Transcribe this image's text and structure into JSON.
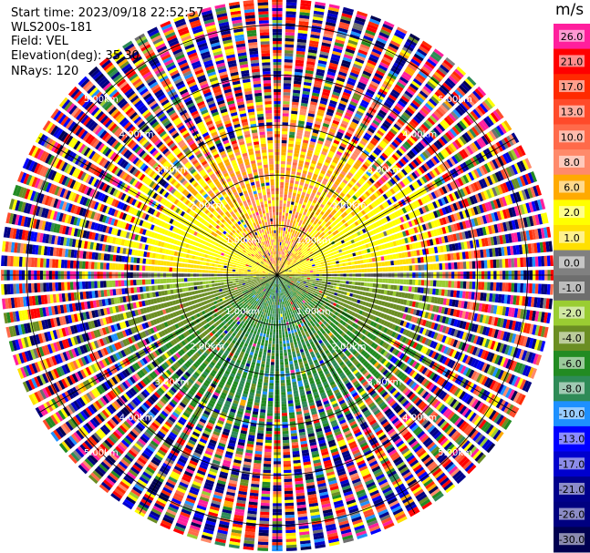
{
  "header": {
    "start_time": "Start time: 2023/09/18 22:52:57",
    "instrument": "WLS200s-181",
    "field": "Field: VEL",
    "elevation": "Elevation(deg): 35.30",
    "nrays": "NRays: 120"
  },
  "colorbar": {
    "unit": "m/s",
    "bins": [
      {
        "label": "26.0",
        "color": "#ff1f9d"
      },
      {
        "label": "21.0",
        "color": "#ff0000"
      },
      {
        "label": "17.0",
        "color": "#ff2a00"
      },
      {
        "label": "13.0",
        "color": "#ff4a2a"
      },
      {
        "label": "10.0",
        "color": "#ff6a4a"
      },
      {
        "label": "8.0",
        "color": "#ff8a6a"
      },
      {
        "label": "6.0",
        "color": "#ffaa00"
      },
      {
        "label": "2.0",
        "color": "#ffff00"
      },
      {
        "label": "1.0",
        "color": "#ffe000"
      },
      {
        "label": "0.0",
        "color": "#808080"
      },
      {
        "label": "-1.0",
        "color": "#6e6e6e"
      },
      {
        "label": "-2.0",
        "color": "#9acd32"
      },
      {
        "label": "-4.0",
        "color": "#6b8e23"
      },
      {
        "label": "-6.0",
        "color": "#228b22"
      },
      {
        "label": "-8.0",
        "color": "#2e8b57"
      },
      {
        "label": "-10.0",
        "color": "#1e90ff"
      },
      {
        "label": "-13.0",
        "color": "#0000ff"
      },
      {
        "label": "-17.0",
        "color": "#0000cd"
      },
      {
        "label": "-21.0",
        "color": "#00008b"
      },
      {
        "label": "-26.0",
        "color": "#000080"
      },
      {
        "label": "-30.0",
        "color": "#000050"
      }
    ]
  },
  "chart_data": {
    "type": "heatmap",
    "projection": "polar PPI",
    "field": "VEL",
    "nrays": 120,
    "range_rings_km": [
      1.0,
      2.0,
      3.0,
      4.0,
      5.0
    ],
    "ring_labels": [
      "1.00km",
      "2.00km",
      "3.00km",
      "4.00km",
      "5.00km"
    ],
    "spokes_deg": [
      0,
      30,
      60,
      90,
      120,
      150,
      180,
      210,
      240,
      270,
      300,
      330
    ],
    "max_range_km": 5.5,
    "pattern": {
      "near_range_north": "positive velocities 1 to 10 m/s (yellow/orange)",
      "near_range_south": "negative velocities -2 to -8 m/s (green)",
      "far_range": "noise, full colour spread"
    }
  }
}
